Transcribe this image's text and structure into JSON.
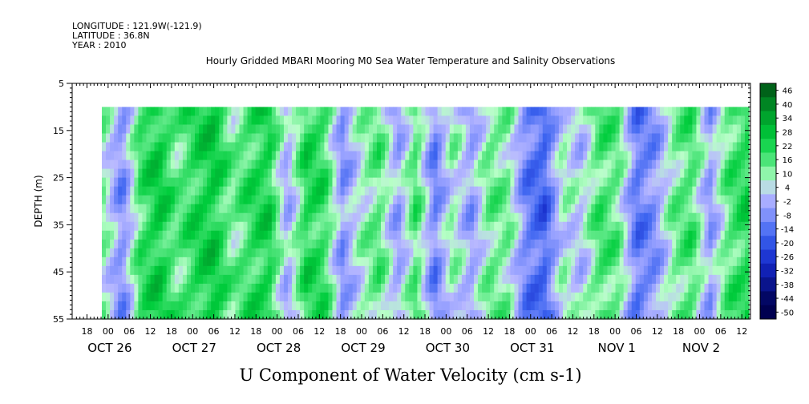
{
  "header": {
    "longitude": "LONGITUDE : 121.9W(-121.9)",
    "latitude": "LATITUDE : 36.8N",
    "year": "YEAR : 2010"
  },
  "chart_data": {
    "type": "heatmap",
    "title": "Hourly Gridded MBARI Mooring M0 Sea Water Temperature and Salinity Observations",
    "xlabel": "U Component of Water Velocity (cm s-1)",
    "ylabel": "DEPTH (m)",
    "ylim": [
      5,
      55
    ],
    "y_inverted": true,
    "y_ticks": [
      5,
      15,
      25,
      35,
      45,
      55
    ],
    "x_hour_ticks": [
      "18",
      "00",
      "06",
      "12",
      "18",
      "00",
      "06",
      "12",
      "18",
      "00",
      "06",
      "12",
      "18",
      "00",
      "06",
      "12",
      "18",
      "00",
      "06",
      "12",
      "18",
      "00",
      "06",
      "12",
      "18",
      "00",
      "06",
      "12",
      "18",
      "00",
      "06",
      "12"
    ],
    "x_date_labels": [
      "OCT 26",
      "OCT 27",
      "OCT 28",
      "OCT 29",
      "OCT 30",
      "OCT 31",
      "NOV  1",
      "NOV  2"
    ],
    "data_depth_range_m": [
      10,
      55
    ],
    "colorbar": {
      "levels": [
        -50,
        -44,
        -38,
        -32,
        -26,
        -20,
        -14,
        -8,
        -2,
        4,
        10,
        16,
        22,
        28,
        34,
        40,
        46
      ],
      "labels": [
        "46",
        "40",
        "34",
        "28",
        "22",
        "16",
        "10",
        "4",
        "-2",
        "-8",
        "-14",
        "-20",
        "-26",
        "-32",
        "-38",
        "-44",
        "-50"
      ]
    },
    "column_pattern_u_cms": [
      6,
      -12,
      14,
      22,
      10,
      18,
      22,
      8,
      16,
      20,
      -6,
      18,
      16,
      -10,
      4,
      12,
      -8,
      14,
      -14,
      6,
      -8,
      10,
      8,
      -14,
      -20,
      4,
      -2,
      14,
      10,
      -16,
      -10,
      8,
      14,
      -8,
      12,
      18
    ]
  },
  "colors": {
    "negative": "#3b5bff",
    "near_zero": "#a8ffc8",
    "positive": "#00c040",
    "background": "#ffffff"
  }
}
